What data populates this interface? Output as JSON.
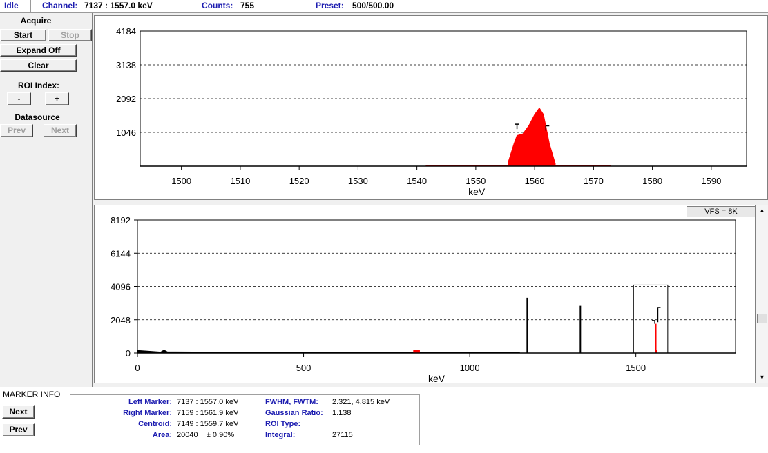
{
  "status": {
    "state": "Idle",
    "channel_label": "Channel:",
    "channel_value": "7137  :  1557.0 keV",
    "counts_label": "Counts:",
    "counts_value": "755",
    "preset_label": "Preset:",
    "preset_value": "500/500.00"
  },
  "left_panel": {
    "acquire_title": "Acquire",
    "start_label": "Start",
    "stop_label": "Stop",
    "expand_label": "Expand Off",
    "clear_label": "Clear",
    "roi_title": "ROI Index:",
    "roi_minus": "-",
    "roi_plus": "+",
    "datasource_title": "Datasource",
    "prev_label": "Prev",
    "next_label": "Next"
  },
  "marker_info": {
    "title": "MARKER INFO",
    "next_label": "Next",
    "prev_label": "Prev",
    "left_marker_label": "Left Marker:",
    "left_marker_value": "7137  :  1557.0 keV",
    "right_marker_label": "Right Marker:",
    "right_marker_value": "7159  :  1561.9 keV",
    "centroid_label": "Centroid:",
    "centroid_value": "7149  :  1559.7 keV",
    "area_label": "Area:",
    "area_value": "20040    ± 0.90%",
    "fwhm_label": "FWHM, FWTM:",
    "fwhm_value": "2.321, 4.815 keV",
    "gaussian_label": "Gaussian Ratio:",
    "gaussian_value": "1.138",
    "roitype_label": "ROI Type:",
    "roitype_value": "",
    "integral_label": "Integral:",
    "integral_value": "27115"
  },
  "vfs_label": "VFS = 8K",
  "colors": {
    "roi": "#ff0000",
    "label_blue": "#1c1cb0",
    "panel_bg": "#f0f0f0"
  },
  "chart_data": [
    {
      "type": "area",
      "name": "expanded-spectrum",
      "xlabel": "keV",
      "ylabel": "",
      "xlim": [
        1493,
        1596
      ],
      "ylim": [
        0,
        4184
      ],
      "yticks": [
        1046,
        2092,
        3138,
        4184
      ],
      "xticks": [
        1500,
        1510,
        1520,
        1530,
        1540,
        1550,
        1560,
        1570,
        1580,
        1590
      ],
      "grid": "horizontal-dashed",
      "roi_range": [
        1541.5,
        1573
      ],
      "peak": {
        "x": [
          1555.5,
          1556.5,
          1557.0,
          1558.0,
          1559.0,
          1560.0,
          1560.8,
          1561.5,
          1562.5,
          1563.5
        ],
        "y": [
          120,
          700,
          950,
          1000,
          1250,
          1600,
          1800,
          1600,
          700,
          80
        ]
      },
      "markers": {
        "left": 1557.0,
        "right": 1561.9
      }
    },
    {
      "type": "area",
      "name": "full-spectrum",
      "xlabel": "keV",
      "ylabel": "",
      "xlim": [
        0,
        1800
      ],
      "ylim": [
        0,
        8192
      ],
      "yticks": [
        0,
        2048,
        4096,
        6144,
        8192
      ],
      "xticks": [
        0,
        500,
        1000,
        1500
      ],
      "grid": "horizontal-dashed",
      "peaks": [
        {
          "x": 1173,
          "y": 3400
        },
        {
          "x": 1333,
          "y": 2900
        },
        {
          "x": 1560,
          "y": 1800
        }
      ],
      "roi_regions": [
        [
          830,
          850
        ],
        [
          1557,
          1562
        ]
      ],
      "markers": {
        "left": 1557.0,
        "right": 1561.9
      }
    }
  ]
}
